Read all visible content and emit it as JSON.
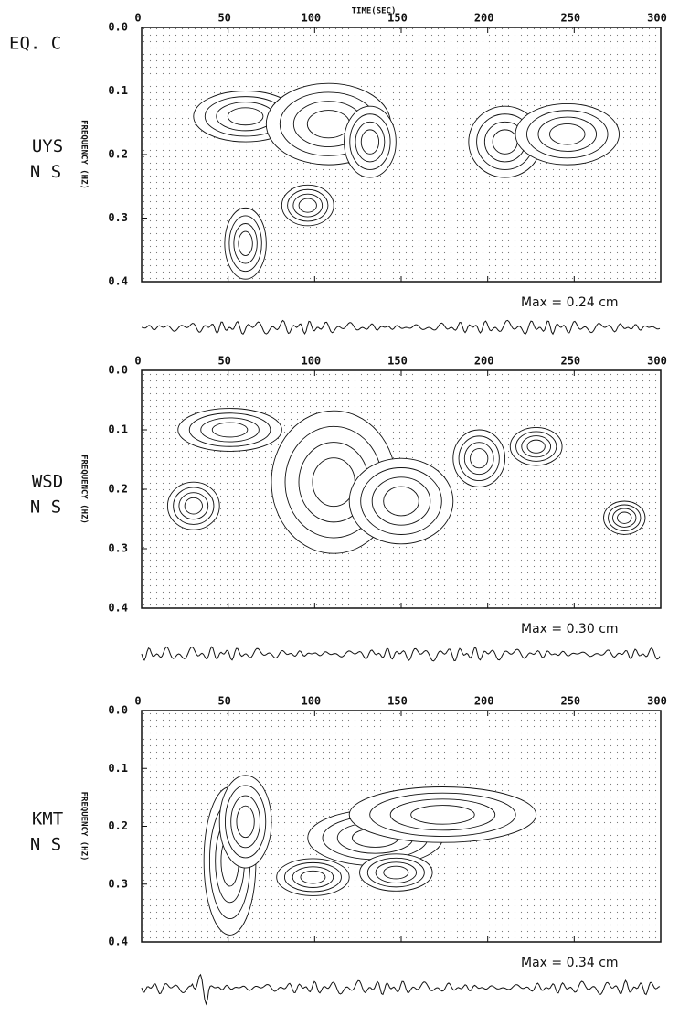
{
  "figure_label": "EQ. C",
  "chart_data": [
    {
      "type": "contour",
      "station": "UYS",
      "component": "N S",
      "x_label": "TIME(SEC)",
      "y_label": "FREQUENCY (HZ)",
      "xlim": [
        0,
        300
      ],
      "xticks": [
        0,
        50,
        100,
        150,
        200,
        250,
        300
      ],
      "ylim": [
        0,
        0.4
      ],
      "yticks": [
        {
          "value": 0,
          "label": "0.0"
        },
        0.1,
        0.2,
        0.3,
        0.4
      ],
      "y_inverted": true,
      "annotation": "Max = 0.24 cm"
    },
    {
      "type": "contour",
      "station": "WSD",
      "component": "N S",
      "y_label": "FREQUENCY (HZ)",
      "xlim": [
        0,
        300
      ],
      "xticks": [
        0,
        50,
        100,
        150,
        200,
        250,
        300
      ],
      "ylim": [
        0,
        0.4
      ],
      "yticks": [
        {
          "value": 0,
          "label": "0.0"
        },
        0.1,
        0.2,
        0.3,
        0.4
      ],
      "y_inverted": true,
      "annotation": "Max = 0.30 cm"
    },
    {
      "type": "contour",
      "station": "KMT",
      "component": "N S",
      "y_label": "FREQUENCY (HZ)",
      "xlim": [
        0,
        300
      ],
      "xticks": [
        0,
        50,
        100,
        150,
        200,
        250,
        300
      ],
      "ylim": [
        0,
        0.4
      ],
      "yticks": [
        {
          "value": 0,
          "label": "0.0"
        },
        0.1,
        0.2,
        0.3,
        0.4
      ],
      "y_inverted": true,
      "annotation": "Max = 0.34 cm"
    }
  ]
}
